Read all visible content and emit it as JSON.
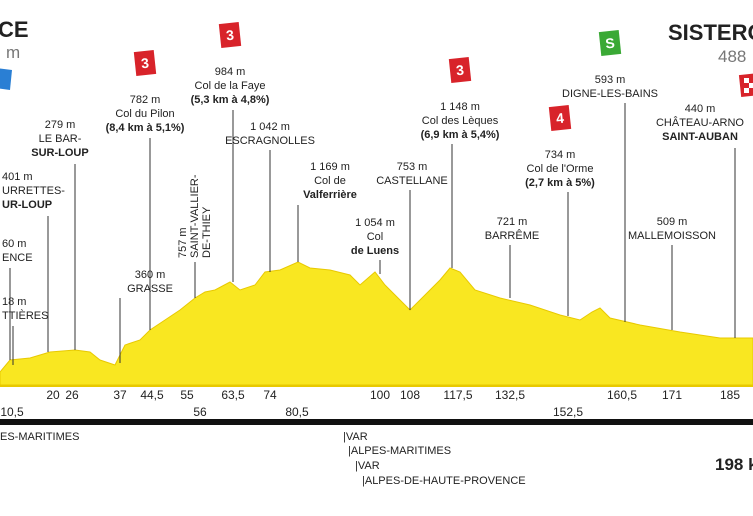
{
  "header": {
    "start_name": "CE",
    "start_alt": "m",
    "finish_name": "SISTERO",
    "finish_alt": "488"
  },
  "waypoints": [
    {
      "lines": [
        "18 m",
        "TTIÈRES"
      ]
    },
    {
      "lines": [
        "60 m",
        "ENCE"
      ]
    },
    {
      "lines": [
        "401 m",
        "URRETTES-",
        "UR-LOUP"
      ]
    },
    {
      "lines": [
        "279 m",
        "LE BAR-",
        "SUR-LOUP"
      ]
    },
    {
      "lines": [
        "782 m",
        "Col du Pilon",
        "(8,4 km à 5,1%)"
      ],
      "badge": "3"
    },
    {
      "lines": [
        "360 m",
        "GRASSE"
      ]
    },
    {
      "lines": [
        "757 m",
        "SAINT-VALLIER-",
        "DE-THIEY"
      ]
    },
    {
      "lines": [
        "984 m",
        "Col de la Faye",
        "(5,3 km à 4,8%)"
      ],
      "badge": "3"
    },
    {
      "lines": [
        "1 042 m",
        "ESCRAGNOLLES"
      ]
    },
    {
      "lines": [
        "1 169 m",
        "Col de",
        "Valferrière"
      ]
    },
    {
      "lines": [
        "1 054 m",
        "Col",
        "de Luens"
      ]
    },
    {
      "lines": [
        "753 m",
        "CASTELLANE"
      ]
    },
    {
      "lines": [
        "1 148 m",
        "Col des Lèques",
        "(6,9 km à 5,4%)"
      ],
      "badge": "3"
    },
    {
      "lines": [
        "721 m",
        "BARRÊME"
      ]
    },
    {
      "lines": [
        "734 m",
        "Col de l'Orme",
        "(2,7 km à 5%)"
      ],
      "badge": "4"
    },
    {
      "lines": [
        "593 m",
        "DIGNE-LES-BAINS"
      ],
      "badge": "S"
    },
    {
      "lines": [
        "509 m",
        "MALLEMOISSON"
      ]
    },
    {
      "lines": [
        "440 m",
        "CHÂTEAU-ARNO",
        "SAINT-AUBAN"
      ]
    }
  ],
  "km_markers": [
    "10,5",
    "20",
    "26",
    "37",
    "44,5",
    "55",
    "56",
    "63,5",
    "74",
    "80,5",
    "100",
    "108",
    "117,5",
    "132,5",
    "152,5",
    "160,5",
    "171",
    "185"
  ],
  "distance": "198 k",
  "departments": [
    "ES-MARITIMES",
    "|VAR",
    "|ALPES-MARITIMES",
    "|VAR",
    "|ALPES-DE-HAUTE-PROVENCE"
  ]
}
